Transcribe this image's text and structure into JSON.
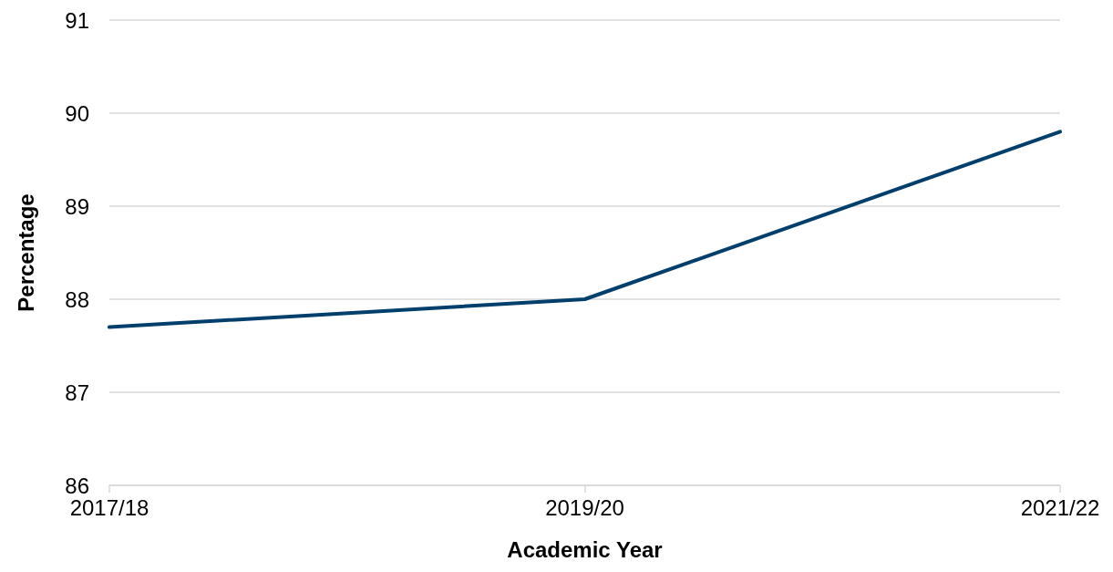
{
  "chart_data": {
    "type": "line",
    "xlabel": "Academic Year",
    "ylabel": "Percentage",
    "categories": [
      "2017/18",
      "2019/20",
      "2021/22"
    ],
    "series": [
      {
        "color": "#003f6b",
        "values": [
          87.7,
          88.0,
          89.8
        ]
      }
    ],
    "ylim": [
      86,
      91
    ],
    "yticks": [
      86,
      87,
      88,
      89,
      90,
      91
    ],
    "grid": "y",
    "marker": "none",
    "line_style": "solid"
  }
}
